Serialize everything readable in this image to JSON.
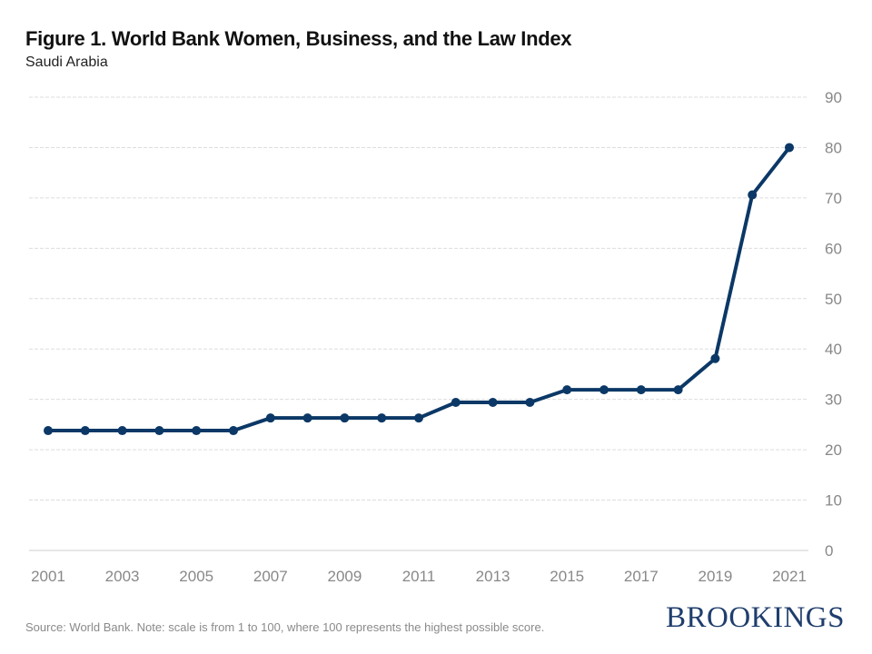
{
  "chart_data": {
    "type": "line",
    "title": "Figure 1. World Bank Women, Business, and the Law Index",
    "subtitle": "Saudi Arabia",
    "xlabel": "",
    "ylabel": "",
    "x": [
      2001,
      2002,
      2003,
      2004,
      2005,
      2006,
      2007,
      2008,
      2009,
      2010,
      2011,
      2012,
      2013,
      2014,
      2015,
      2016,
      2017,
      2018,
      2019,
      2020,
      2021
    ],
    "series": [
      {
        "name": "Saudi Arabia",
        "color": "#0b3866",
        "values": [
          23.8,
          23.8,
          23.8,
          23.8,
          23.8,
          23.8,
          26.3,
          26.3,
          26.3,
          26.3,
          26.3,
          29.4,
          29.4,
          29.4,
          31.9,
          31.9,
          31.9,
          31.9,
          38.1,
          70.6,
          80.0
        ]
      }
    ],
    "ylim": [
      0,
      90
    ],
    "yticks": [
      0,
      10,
      20,
      30,
      40,
      50,
      60,
      70,
      80,
      90
    ],
    "xticks": [
      "2001",
      "2003",
      "2005",
      "2007",
      "2009",
      "2011",
      "2013",
      "2015",
      "2017",
      "2019",
      "2021"
    ],
    "grid": true,
    "y_axis_side": "right",
    "legend": "none"
  },
  "footer": {
    "note": "Source: World Bank. Note: scale is from 1 to 100, where 100 represents the highest possible score.",
    "logo": "BROOKINGS"
  }
}
